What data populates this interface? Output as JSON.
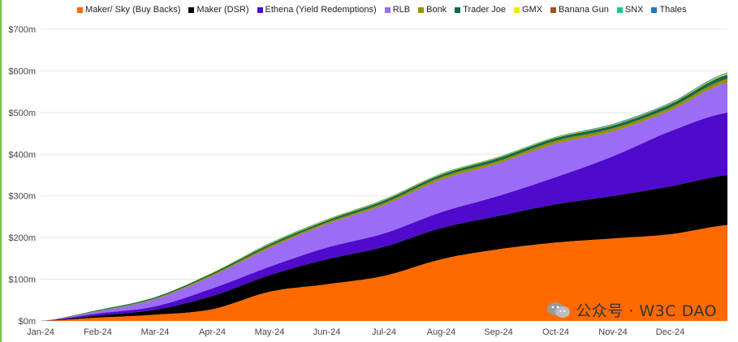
{
  "chart_data": {
    "type": "area",
    "stacked": true,
    "title": "",
    "xlabel": "",
    "ylabel": "",
    "ylim": [
      0,
      700
    ],
    "y_ticks": [
      "$0m",
      "$100m",
      "$200m",
      "$300m",
      "$400m",
      "$500m",
      "$600m",
      "$700m"
    ],
    "y_tick_values": [
      0,
      100,
      200,
      300,
      400,
      500,
      600,
      700
    ],
    "x_ticks": [
      "Jan-24",
      "Feb-24",
      "Mar-24",
      "Apr-24",
      "May-24",
      "Jun-24",
      "Jul-24",
      "Aug-24",
      "Sep-24",
      "Oct-24",
      "Nov-24",
      "Dec-24"
    ],
    "grid": true,
    "legend_position": "top",
    "x": [
      "Jan-24",
      "Feb-24",
      "Mar-24",
      "Apr-24",
      "May-24",
      "Jun-24",
      "Jul-24",
      "Aug-24",
      "Sep-24",
      "Oct-24",
      "Nov-24",
      "Dec-24",
      "Dec-24 end"
    ],
    "series": [
      {
        "name": "Maker/ Sky (Buy Backs)",
        "color": "#ff6a00",
        "values": [
          0,
          8,
          15,
          28,
          70,
          88,
          108,
          148,
          172,
          188,
          198,
          208,
          230
        ]
      },
      {
        "name": "Maker (DSR)",
        "color": "#000000",
        "values": [
          0,
          5,
          12,
          32,
          40,
          60,
          70,
          75,
          80,
          92,
          102,
          115,
          120
        ]
      },
      {
        "name": "Ethena (Yield Redemptions)",
        "color": "#4f0acd",
        "values": [
          0,
          5,
          8,
          18,
          20,
          28,
          32,
          38,
          48,
          65,
          95,
          132,
          150
        ]
      },
      {
        "name": "RLB",
        "color": "#9b6cf5",
        "values": [
          0,
          5,
          17,
          30,
          45,
          56,
          68,
          78,
          78,
          80,
          60,
          50,
          72
        ]
      },
      {
        "name": "Bonk",
        "color": "#9b8e00",
        "values": [
          0,
          1,
          2,
          3,
          4,
          4,
          5,
          6,
          6,
          7,
          7,
          7,
          9
        ]
      },
      {
        "name": "Trader Joe",
        "color": "#0f6b4c",
        "values": [
          0,
          2,
          3,
          4,
          5,
          5,
          6,
          6,
          7,
          7,
          7,
          8,
          10
        ]
      },
      {
        "name": "GMX",
        "color": "#f1e61c",
        "values": [
          0,
          0,
          0,
          1,
          1,
          1,
          1,
          1,
          1,
          1,
          1,
          1,
          2
        ]
      },
      {
        "name": "Banana Gun",
        "color": "#a8501a",
        "values": [
          0,
          0,
          0,
          0,
          1,
          1,
          1,
          1,
          1,
          1,
          1,
          1,
          1
        ]
      },
      {
        "name": "SNX",
        "color": "#1ec98b",
        "values": [
          0,
          0,
          0,
          0,
          1,
          1,
          1,
          1,
          1,
          1,
          1,
          1,
          1
        ]
      },
      {
        "name": "Thales",
        "color": "#1f7ac4",
        "values": [
          0,
          0,
          0,
          0,
          0,
          0,
          0,
          0,
          0,
          0,
          1,
          1,
          1
        ]
      }
    ]
  },
  "watermark": {
    "text": "公众号 · W3C DAO",
    "icon": "wechat-icon"
  }
}
